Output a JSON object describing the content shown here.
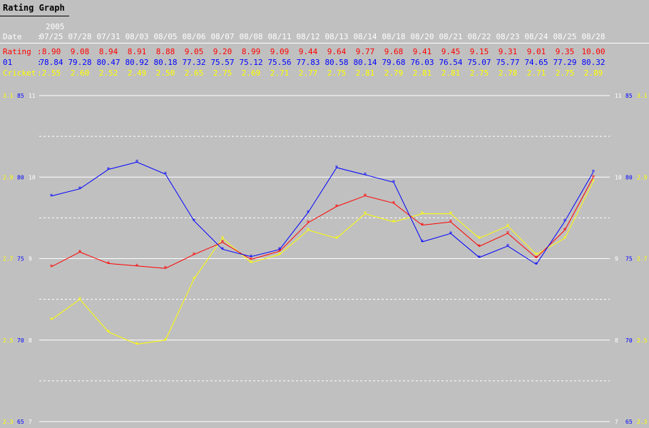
{
  "title": "Rating Graph",
  "year_label": "2005",
  "row_labels": {
    "date": "Date",
    "rating": "Rating",
    "s01": "01",
    "cricket": "Cricket"
  },
  "dates": [
    "07/25",
    "07/28",
    "07/31",
    "08/03",
    "08/05",
    "08/06",
    "08/07",
    "08/08",
    "08/11",
    "08/12",
    "08/13",
    "08/14",
    "08/18",
    "08/20",
    "08/21",
    "08/22",
    "08/23",
    "08/24",
    "08/25",
    "08/28"
  ],
  "colors": {
    "rating": "#ff0000",
    "s01": "#0000ff",
    "cricket": "#ffff00",
    "grid": "#ffffff",
    "background": "#c0c0c0"
  },
  "chart_data": {
    "type": "line",
    "title": "Rating Graph",
    "categories": [
      "07/25",
      "07/28",
      "07/31",
      "08/03",
      "08/05",
      "08/06",
      "08/07",
      "08/08",
      "08/11",
      "08/12",
      "08/13",
      "08/14",
      "08/18",
      "08/20",
      "08/21",
      "08/22",
      "08/23",
      "08/24",
      "08/25",
      "08/28"
    ],
    "series": [
      {
        "name": "Rating",
        "key": "rating",
        "axis": "rating",
        "values": [
          8.9,
          9.08,
          8.94,
          8.91,
          8.88,
          9.05,
          9.2,
          8.99,
          9.09,
          9.44,
          9.64,
          9.77,
          9.68,
          9.41,
          9.45,
          9.15,
          9.31,
          9.01,
          9.35,
          10.0
        ]
      },
      {
        "name": "01",
        "key": "s01",
        "axis": "s01",
        "values": [
          78.84,
          79.28,
          80.47,
          80.92,
          80.18,
          77.32,
          75.57,
          75.12,
          75.56,
          77.83,
          80.58,
          80.14,
          79.68,
          76.03,
          76.54,
          75.07,
          75.77,
          74.65,
          77.29,
          80.32
        ]
      },
      {
        "name": "Cricket",
        "key": "cricket",
        "axis": "cricket",
        "values": [
          2.55,
          2.6,
          2.52,
          2.49,
          2.5,
          2.65,
          2.75,
          2.69,
          2.71,
          2.77,
          2.75,
          2.81,
          2.79,
          2.81,
          2.81,
          2.75,
          2.78,
          2.71,
          2.75,
          2.89
        ]
      }
    ],
    "axes": {
      "rating": {
        "range": [
          7,
          11
        ],
        "ticks": [
          "11",
          "10",
          "9",
          "8",
          "7"
        ]
      },
      "s01": {
        "range": [
          65,
          85
        ],
        "ticks": [
          "85",
          "80",
          "75",
          "70",
          "65"
        ]
      },
      "cricket": {
        "range": [
          2.3,
          3.1
        ],
        "ticks": [
          "3.1",
          "2.9",
          "2.7",
          "2.5",
          "2.3"
        ]
      }
    },
    "grid": true
  }
}
